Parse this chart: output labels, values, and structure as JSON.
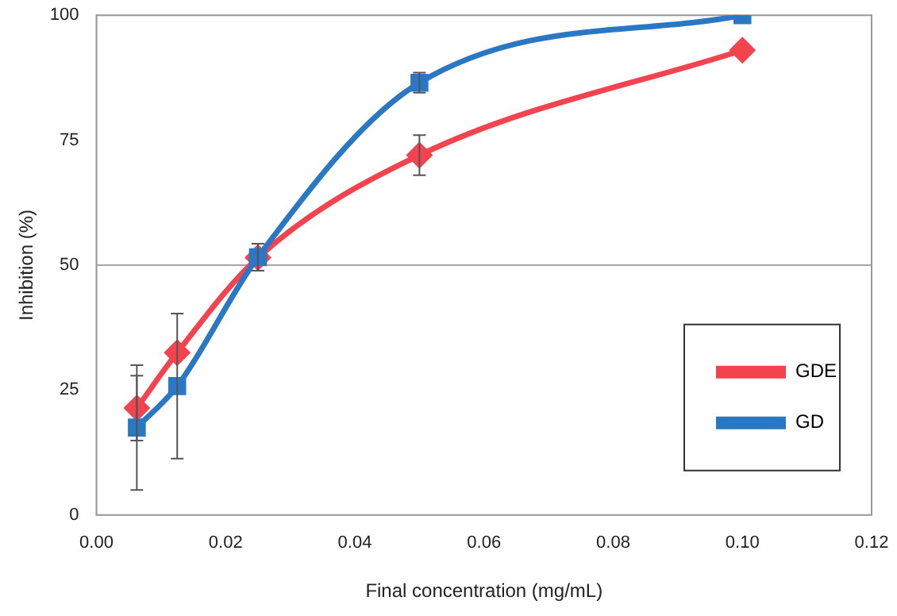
{
  "chart_data": {
    "type": "line",
    "xlabel": "Final concentration (mg/mL)",
    "ylabel": "Inhibition (%)",
    "xlim": [
      0,
      0.12
    ],
    "xticks": [
      {
        "value": 0,
        "label": "0.00"
      },
      {
        "value": 0.02,
        "label": "0.02"
      },
      {
        "value": 0.04,
        "label": "0.04"
      },
      {
        "value": 0.06,
        "label": "0.06"
      },
      {
        "value": 0.08,
        "label": "0.08"
      },
      {
        "value": 0.1,
        "label": "0.10"
      },
      {
        "value": 0.12,
        "label": "0.12"
      }
    ],
    "ylim": [
      0,
      100
    ],
    "yticks": [
      0,
      25,
      50,
      75,
      100
    ],
    "grid": false,
    "legend": "bottom right",
    "line_style": "solid",
    "ref_lines": [
      {
        "axis": "y",
        "value": 50,
        "color": "#a6a6a6"
      }
    ],
    "series": [
      {
        "name": "GDE",
        "color": "#f2434f",
        "marker": "diamond",
        "x": [
          0.00625,
          0.0125,
          0.025,
          0.05,
          0.1
        ],
        "values": [
          21.4,
          32.5,
          51.5,
          72,
          93
        ],
        "errors": [
          6.5,
          null,
          null,
          4,
          null
        ]
      },
      {
        "name": "GD",
        "color": "#2a78c4",
        "marker": "square",
        "x": [
          0.00625,
          0.0125,
          0.025,
          0.05,
          0.1
        ],
        "values": [
          17.5,
          25.8,
          51.6,
          86.5,
          100
        ],
        "errors": [
          12.5,
          14.5,
          2.7,
          2,
          null
        ]
      }
    ]
  }
}
